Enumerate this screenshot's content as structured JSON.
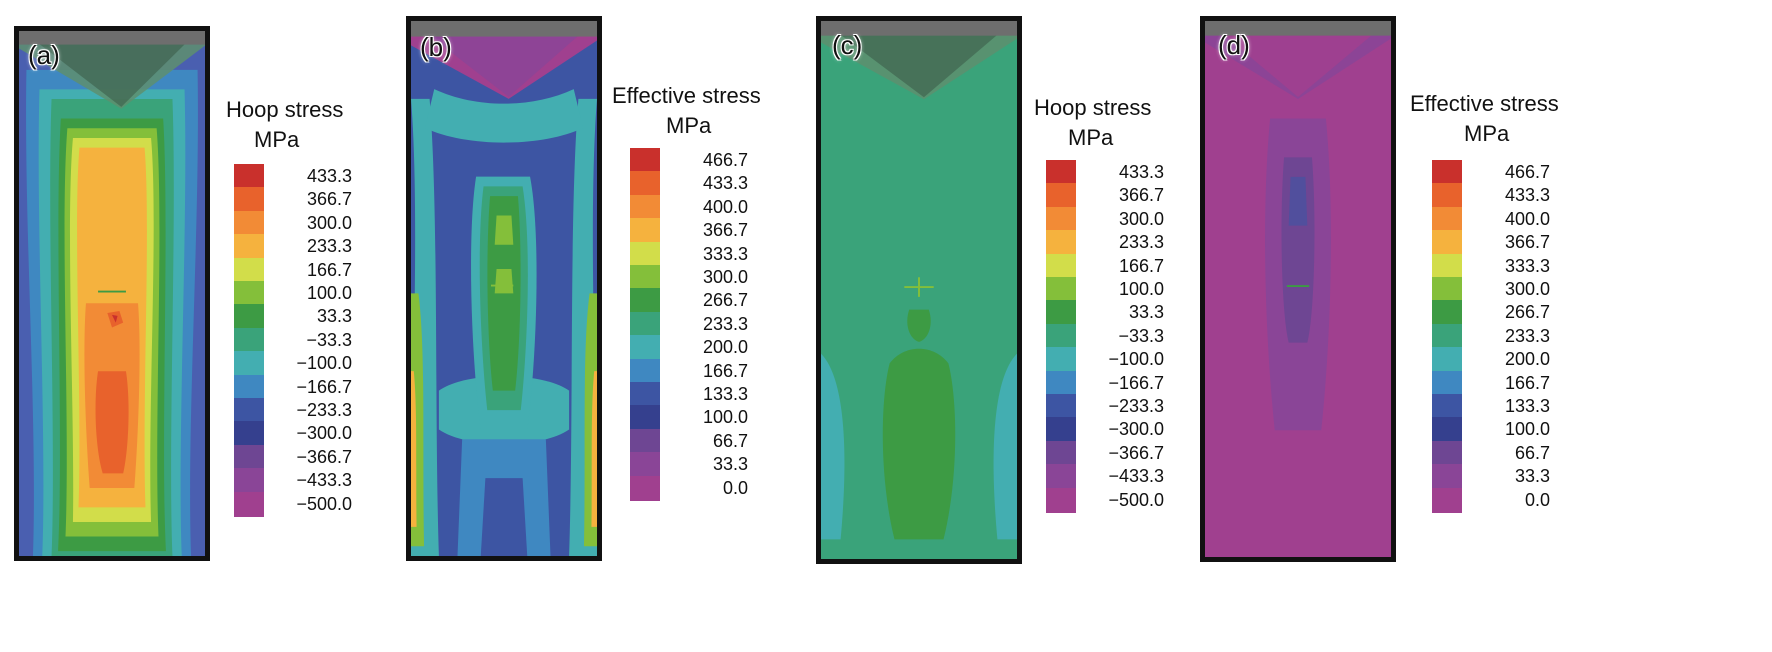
{
  "panels": [
    {
      "label": "(a)",
      "legend_title": "Hoop stress",
      "legend_unit": "MPa",
      "scale": "hoop"
    },
    {
      "label": "(b)",
      "legend_title": "Effective stress",
      "legend_unit": "MPa",
      "scale": "effective"
    },
    {
      "label": "(c)",
      "legend_title": "Hoop stress",
      "legend_unit": "MPa",
      "scale": "hoop"
    },
    {
      "label": "(d)",
      "legend_title": "Effective stress",
      "legend_unit": "MPa",
      "scale": "effective"
    }
  ],
  "scales": {
    "hoop": {
      "values": [
        "433.3",
        "366.7",
        "300.0",
        "233.3",
        "166.7",
        "100.0",
        "33.3",
        "−33.3",
        "−100.0",
        "−166.7",
        "−233.3",
        "−300.0",
        "−366.7",
        "−433.3",
        "−500.0"
      ],
      "colors": [
        "#c9302c",
        "#e8622c",
        "#f28b36",
        "#f5b23e",
        "#d2dd4a",
        "#84bf3a",
        "#3d9b44",
        "#3aa37a",
        "#43aeb1",
        "#3f88c1",
        "#3d55a3",
        "#35408e",
        "#6e4693",
        "#8a4597",
        "#a0408f"
      ]
    },
    "effective": {
      "values": [
        "466.7",
        "433.3",
        "400.0",
        "366.7",
        "333.3",
        "300.0",
        "266.7",
        "233.3",
        "200.0",
        "166.7",
        "133.3",
        "100.0",
        "66.7",
        "33.3",
        "0.0"
      ],
      "colors": [
        "#c9302c",
        "#e8622c",
        "#f28b36",
        "#f5b23e",
        "#d2dd4a",
        "#84bf3a",
        "#3d9b44",
        "#3aa37a",
        "#43aeb1",
        "#3f88c1",
        "#3d55a3",
        "#35408e",
        "#6e4693",
        "#8a4597",
        "#a0408f"
      ]
    }
  },
  "colors": {
    "die_gray": "#6e6e6e",
    "die_dark": "#3c3c3c",
    "border": "#111111"
  }
}
